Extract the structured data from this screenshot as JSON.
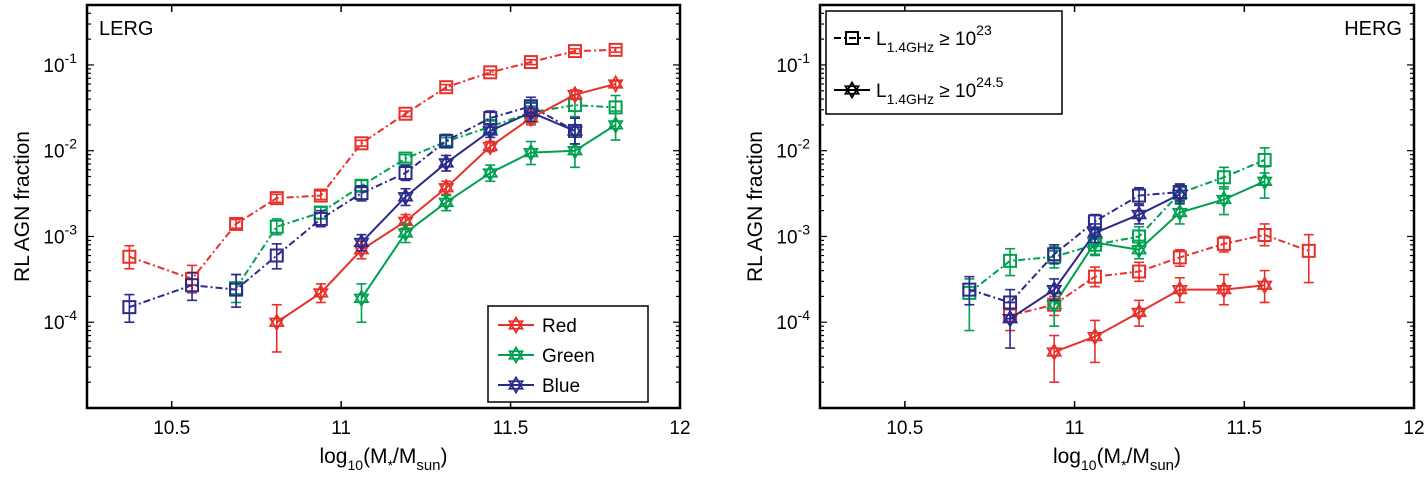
{
  "chart_data": [
    {
      "type": "line",
      "panel_label": "LERG",
      "xlabel": "log10(M*/Msun)",
      "ylabel": "RL AGN fraction",
      "xlim": [
        10.25,
        12.0
      ],
      "ylim": [
        1e-05,
        0.5
      ],
      "yscale": "log",
      "xticks": [
        "10.5",
        "11",
        "11.5",
        "12"
      ],
      "yticks": [
        "10-4",
        "10-3",
        "10-2",
        "10-1"
      ],
      "legend": {
        "placement": "bottom-right",
        "entries": [
          "Red",
          "Green",
          "Blue"
        ]
      },
      "series": [
        {
          "name": "Red",
          "color": "#e8302a",
          "sample": "L1.4GHz ≥ 10^23",
          "linestyle": "dashdot",
          "marker": "square",
          "x": [
            10.375,
            10.56,
            10.69,
            10.81,
            10.94,
            11.06,
            11.19,
            11.31,
            11.44,
            11.56,
            11.69,
            11.81
          ],
          "y": [
            0.00058,
            0.00032,
            0.0014,
            0.0028,
            0.003,
            0.0122,
            0.027,
            0.055,
            0.082,
            0.108,
            0.145,
            0.15
          ],
          "ylo": [
            0.00042,
            0.00022,
            0.00125,
            0.0025,
            0.0027,
            0.0113,
            0.025,
            0.051,
            0.077,
            0.101,
            0.136,
            0.141
          ],
          "yhi": [
            0.00078,
            0.00046,
            0.00158,
            0.0031,
            0.0034,
            0.0132,
            0.029,
            0.059,
            0.087,
            0.115,
            0.154,
            0.159
          ]
        },
        {
          "name": "Green",
          "color": "#00a050",
          "sample": "L1.4GHz ≥ 10^23",
          "linestyle": "dashdot",
          "marker": "square",
          "x": [
            10.69,
            10.81,
            10.94,
            11.06,
            11.19,
            11.31,
            11.44,
            11.56,
            11.69,
            11.81
          ],
          "y": [
            0.00025,
            0.0013,
            0.0019,
            0.0039,
            0.0081,
            0.0128,
            0.019,
            0.028,
            0.034,
            0.032
          ],
          "ylo": [
            0.00017,
            0.00105,
            0.0016,
            0.0034,
            0.0073,
            0.0115,
            0.016,
            0.021,
            0.025,
            0.022
          ],
          "yhi": [
            0.00036,
            0.0016,
            0.0022,
            0.0045,
            0.009,
            0.0142,
            0.023,
            0.037,
            0.045,
            0.044
          ]
        },
        {
          "name": "Blue",
          "color": "#2a2a8c",
          "sample": "L1.4GHz ≥ 10^23",
          "linestyle": "dashdot",
          "marker": "square",
          "x": [
            10.375,
            10.56,
            10.69,
            10.81,
            10.94,
            11.06,
            11.19,
            11.31,
            11.44,
            11.56,
            11.69
          ],
          "y": [
            0.00015,
            0.00027,
            0.00024,
            0.0006,
            0.0016,
            0.0032,
            0.0055,
            0.013,
            0.024,
            0.033,
            0.017
          ],
          "ylo": [
            0.0001,
            0.00018,
            0.00015,
            0.00042,
            0.0013,
            0.0026,
            0.0045,
            0.0108,
            0.02,
            0.026,
            0.012
          ],
          "yhi": [
            0.00021,
            0.00038,
            0.00036,
            0.00082,
            0.002,
            0.0039,
            0.0067,
            0.0155,
            0.029,
            0.042,
            0.024
          ]
        },
        {
          "name": "Red",
          "color": "#e8302a",
          "sample": "L1.4GHz ≥ 10^24.5",
          "linestyle": "solid",
          "marker": "star",
          "x": [
            10.81,
            10.94,
            11.06,
            11.19,
            11.31,
            11.44,
            11.56,
            11.69,
            11.81
          ],
          "y": [
            0.0001,
            0.00022,
            0.0007,
            0.0015,
            0.0037,
            0.0112,
            0.024,
            0.045,
            0.06
          ],
          "ylo": [
            4.5e-05,
            0.00017,
            0.00055,
            0.00125,
            0.0031,
            0.0098,
            0.02,
            0.04,
            0.055
          ],
          "yhi": [
            0.00016,
            0.00028,
            0.00088,
            0.0018,
            0.0044,
            0.0128,
            0.029,
            0.051,
            0.065
          ]
        },
        {
          "name": "Green",
          "color": "#00a050",
          "sample": "L1.4GHz ≥ 10^24.5",
          "linestyle": "solid",
          "marker": "star",
          "x": [
            11.06,
            11.19,
            11.31,
            11.44,
            11.56,
            11.69,
            11.81
          ],
          "y": [
            0.00019,
            0.0011,
            0.0025,
            0.0055,
            0.0095,
            0.01,
            0.02
          ],
          "ylo": [
            0.0001,
            0.00085,
            0.002,
            0.0044,
            0.0069,
            0.0064,
            0.0133
          ],
          "yhi": [
            0.00028,
            0.0014,
            0.003,
            0.0068,
            0.0128,
            0.0148,
            0.029
          ]
        },
        {
          "name": "Blue",
          "color": "#2a2a8c",
          "sample": "L1.4GHz ≥ 10^24.5",
          "linestyle": "solid",
          "marker": "star",
          "x": [
            11.06,
            11.19,
            11.31,
            11.44,
            11.56,
            11.69
          ],
          "y": [
            0.00085,
            0.0029,
            0.0072,
            0.017,
            0.028,
            0.017
          ],
          "ylo": [
            0.00068,
            0.0023,
            0.0058,
            0.0143,
            0.022,
            0.012
          ],
          "yhi": [
            0.00105,
            0.0036,
            0.0088,
            0.0205,
            0.036,
            0.024
          ]
        }
      ]
    },
    {
      "type": "line",
      "panel_label": "HERG",
      "xlabel": "log10(M*/Msun)",
      "ylabel": "RL AGN fraction",
      "xlim": [
        10.25,
        12.0
      ],
      "ylim": [
        1e-05,
        0.5
      ],
      "yscale": "log",
      "xticks": [
        "10.5",
        "11",
        "11.5",
        "12"
      ],
      "yticks": [
        "10-4",
        "10-3",
        "10-2",
        "10-1"
      ],
      "legend": {
        "placement": "top-left",
        "entries": [
          "L1.4GHz ≥ 10^23",
          "L1.4GHz ≥ 10^24.5"
        ]
      },
      "series": [
        {
          "name": "Red",
          "color": "#e8302a",
          "sample": "L1.4GHz ≥ 10^23",
          "linestyle": "dashdot",
          "marker": "square",
          "x": [
            10.81,
            10.94,
            11.06,
            11.19,
            11.31,
            11.44,
            11.56,
            11.69
          ],
          "y": [
            0.00012,
            0.00016,
            0.00034,
            0.00039,
            0.00057,
            0.00082,
            0.00104,
            0.00068
          ],
          "ylo": [
            8e-05,
            0.00012,
            0.00026,
            0.0003,
            0.00045,
            0.00066,
            0.00078,
            0.00029
          ],
          "yhi": [
            0.00017,
            0.0002,
            0.00044,
            0.0005,
            0.0007,
            0.001,
            0.0014,
            0.00105
          ]
        },
        {
          "name": "Green",
          "color": "#00a050",
          "sample": "L1.4GHz ≥ 10^23",
          "linestyle": "dashdot",
          "marker": "square",
          "x": [
            10.69,
            10.81,
            10.94,
            11.06,
            11.19,
            11.31,
            11.44,
            11.56
          ],
          "y": [
            0.00022,
            0.00052,
            0.00058,
            0.0008,
            0.001,
            0.0032,
            0.0049,
            0.0078
          ],
          "ylo": [
            8e-05,
            0.00035,
            0.00043,
            0.00062,
            0.00078,
            0.0025,
            0.0036,
            0.0055
          ],
          "yhi": [
            0.00032,
            0.00072,
            0.00076,
            0.00105,
            0.0013,
            0.004,
            0.0064,
            0.0108
          ]
        },
        {
          "name": "Blue",
          "color": "#2a2a8c",
          "sample": "L1.4GHz ≥ 10^23",
          "linestyle": "dashdot",
          "marker": "square",
          "x": [
            10.69,
            10.81,
            10.94,
            11.06,
            11.19,
            11.31
          ],
          "y": [
            0.00024,
            0.00017,
            0.00062,
            0.0015,
            0.003,
            0.0033
          ],
          "ylo": [
            0.00016,
            0.00011,
            0.00048,
            0.0012,
            0.0024,
            0.0026
          ],
          "yhi": [
            0.00034,
            0.00024,
            0.0008,
            0.0018,
            0.0037,
            0.0041
          ]
        },
        {
          "name": "Red",
          "color": "#e8302a",
          "sample": "L1.4GHz ≥ 10^24.5",
          "linestyle": "solid",
          "marker": "star",
          "x": [
            10.94,
            11.06,
            11.19,
            11.31,
            11.44,
            11.56
          ],
          "y": [
            4.5e-05,
            6.8e-05,
            0.00013,
            0.00024,
            0.00024,
            0.00027
          ],
          "ylo": [
            2e-05,
            3.4e-05,
            9e-05,
            0.00017,
            0.00016,
            0.00017
          ],
          "yhi": [
            7e-05,
            0.000105,
            0.00018,
            0.00033,
            0.00036,
            0.0004
          ]
        },
        {
          "name": "Green",
          "color": "#00a050",
          "sample": "L1.4GHz ≥ 10^24.5",
          "linestyle": "solid",
          "marker": "star",
          "x": [
            10.94,
            11.06,
            11.19,
            11.31,
            11.44,
            11.56
          ],
          "y": [
            0.00016,
            0.00085,
            0.0007,
            0.0019,
            0.0027,
            0.0044
          ],
          "ylo": [
            9e-05,
            0.0006,
            0.00055,
            0.0014,
            0.0018,
            0.0028
          ],
          "yhi": [
            0.00022,
            0.0011,
            0.0009,
            0.0025,
            0.0038,
            0.0065
          ]
        },
        {
          "name": "Blue",
          "color": "#2a2a8c",
          "sample": "L1.4GHz ≥ 10^24.5",
          "linestyle": "solid",
          "marker": "star",
          "x": [
            10.81,
            10.94,
            11.06,
            11.19,
            11.31
          ],
          "y": [
            0.00011,
            0.00024,
            0.0011,
            0.0018,
            0.0031
          ],
          "ylo": [
            5e-05,
            0.00018,
            0.00085,
            0.0014,
            0.0024
          ],
          "yhi": [
            0.00017,
            0.00032,
            0.0014,
            0.0023,
            0.004
          ]
        }
      ]
    }
  ]
}
